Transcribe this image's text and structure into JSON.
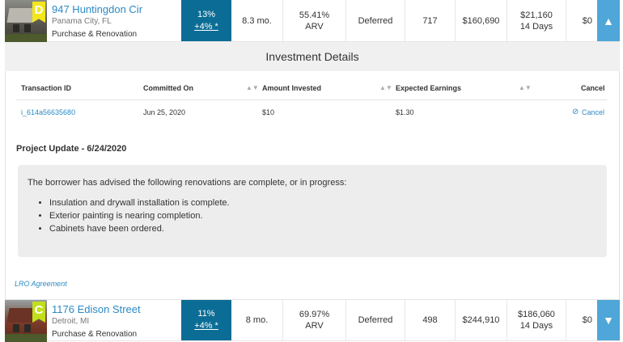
{
  "properties": [
    {
      "grade": "D",
      "name": "947 Huntingdon Cir",
      "city": "Panama City, FL",
      "type": "Purchase & Renovation",
      "rate": "13%",
      "rate_bonus": "+4% *",
      "term": "8.3 mo.",
      "ltv": "55.41%",
      "ltv_label": "ARV",
      "status": "Deferred",
      "credit": "717",
      "loan": "$160,690",
      "earnings": "$21,160",
      "earnings_days": "14 Days",
      "invested": "$0",
      "toggle_icon": "▲"
    },
    {
      "grade": "C",
      "name": "1176 Edison Street",
      "city": "Detroit, MI",
      "type": "Purchase & Renovation",
      "rate": "11%",
      "rate_bonus": "+4% *",
      "term": "8 mo.",
      "ltv": "69.97%",
      "ltv_label": "ARV",
      "status": "Deferred",
      "credit": "498",
      "loan": "$244,910",
      "earnings": "$186,060",
      "earnings_days": "14 Days",
      "invested": "$0",
      "toggle_icon": "▼"
    }
  ],
  "details": {
    "title": "Investment Details",
    "columns": {
      "transaction_id": "Transaction ID",
      "committed_on": "Committed On",
      "amount_invested": "Amount Invested",
      "expected_earnings": "Expected Earnings",
      "cancel": "Cancel"
    },
    "sort_icon": "▲▼",
    "rows": [
      {
        "transaction_id": "i_614a56635680",
        "committed_on": "Jun 25, 2020",
        "amount_invested": "$10",
        "expected_earnings": "$1.30",
        "cancel_label": "Cancel",
        "cancel_icon": "⊘"
      }
    ]
  },
  "update": {
    "title": "Project Update - 6/24/2020",
    "intro": "The borrower has advised the following renovations are complete, or in progress:",
    "items": [
      "Insulation and drywall installation is complete.",
      "Exterior painting is nearing completion.",
      "Cabinets have been ordered."
    ]
  },
  "lro_link": "LRO Agreement"
}
